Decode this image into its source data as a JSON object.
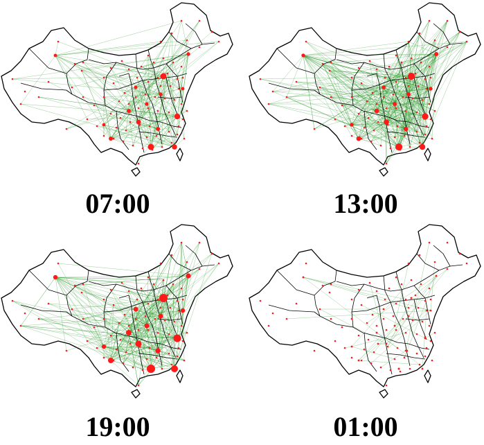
{
  "colors": {
    "flow_line": "#2e9a2e",
    "city_dot": "#ff1a1a",
    "border": "#000000",
    "land": "#ffffff"
  },
  "panels": [
    {
      "time": "07:00",
      "flow_density": 0.55,
      "hub_size": 0.75
    },
    {
      "time": "13:00",
      "flow_density": 1.0,
      "hub_size": 0.85
    },
    {
      "time": "19:00",
      "flow_density": 0.85,
      "hub_size": 1.0
    },
    {
      "time": "01:00",
      "flow_density": 0.08,
      "hub_size": 0.25
    }
  ]
}
